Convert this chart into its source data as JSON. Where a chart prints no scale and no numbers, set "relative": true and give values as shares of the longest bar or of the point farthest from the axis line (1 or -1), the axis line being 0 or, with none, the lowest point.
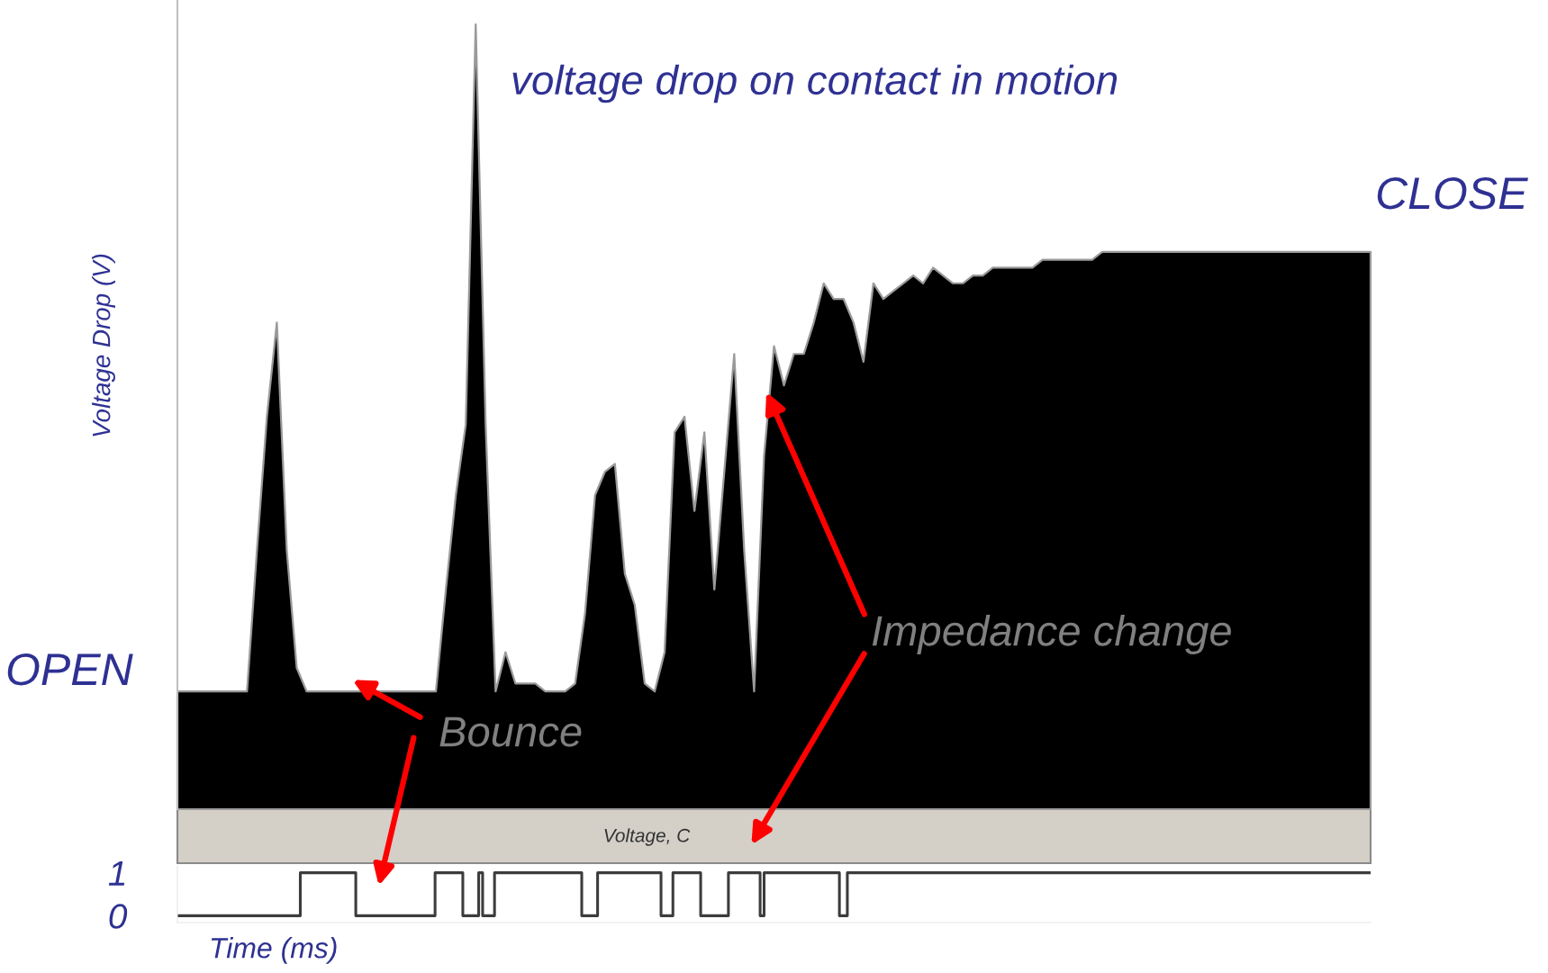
{
  "chart_data": [
    {
      "type": "area",
      "title": "voltage drop on contact in motion",
      "ylabel": "Voltage Drop (V)",
      "relative": true,
      "annotations": [
        "OPEN",
        "CLOSE",
        "Bounce",
        "Impedance change"
      ],
      "categories": [
        null,
        null,
        null,
        null,
        null,
        null,
        null,
        null,
        null,
        null,
        null,
        null,
        null,
        null,
        null,
        null,
        null,
        null,
        null,
        null,
        null,
        null,
        null,
        null,
        null,
        null,
        null,
        null,
        null,
        null,
        null,
        null,
        null,
        null,
        null,
        null,
        null,
        null,
        null,
        null,
        null,
        null,
        null,
        null,
        null,
        null,
        null,
        null,
        null,
        null,
        null,
        null,
        null,
        null,
        null,
        null,
        null,
        null,
        null,
        null,
        null,
        null,
        null,
        null,
        null,
        null,
        null,
        null,
        null,
        null,
        null,
        null,
        null,
        null,
        null,
        null,
        null,
        null,
        null,
        null,
        null,
        null,
        null,
        null,
        null,
        null,
        null,
        null,
        null,
        null,
        null,
        null,
        null,
        null,
        null,
        null,
        null,
        null,
        null,
        null,
        null,
        null,
        null,
        null,
        null,
        null,
        null,
        null,
        null,
        null,
        null,
        null,
        null,
        null,
        null,
        null,
        null,
        null,
        null,
        null,
        null
      ],
      "series": [
        {
          "color": "#000000",
          "values": [
            0.15,
            0.15,
            0.15,
            0.15,
            0.15,
            0.15,
            0.15,
            0.15,
            0.33,
            0.5,
            0.62,
            0.33,
            0.18,
            0.15,
            0.15,
            0.15,
            0.15,
            0.15,
            0.15,
            0.15,
            0.15,
            0.15,
            0.15,
            0.15,
            0.15,
            0.15,
            0.15,
            0.28,
            0.4,
            0.49,
            1.0,
            0.49,
            0.15,
            0.2,
            0.16,
            0.16,
            0.16,
            0.15,
            0.15,
            0.15,
            0.16,
            0.25,
            0.4,
            0.43,
            0.44,
            0.3,
            0.26,
            0.16,
            0.15,
            0.2,
            0.48,
            0.5,
            0.38,
            0.48,
            0.28,
            0.43,
            0.58,
            0.33,
            0.15,
            0.45,
            0.59,
            0.54,
            0.58,
            0.58,
            0.62,
            0.67,
            0.65,
            0.65,
            0.62,
            0.57,
            0.67,
            0.65,
            0.66,
            0.67,
            0.68,
            0.67,
            0.69,
            0.68,
            0.67,
            0.67,
            0.68,
            0.68,
            0.69,
            0.69,
            0.69,
            0.69,
            0.69,
            0.7,
            0.7,
            0.7,
            0.7,
            0.7,
            0.7,
            0.71,
            0.71,
            0.71,
            0.71,
            0.71,
            0.71,
            0.71,
            0.71,
            0.71,
            0.71,
            0.71,
            0.71,
            0.71,
            0.71,
            0.71,
            0.71,
            0.71,
            0.71,
            0.71,
            0.71,
            0.71,
            0.71,
            0.71,
            0.71,
            0.71,
            0.71,
            0.71,
            0.71
          ]
        }
      ]
    },
    {
      "type": "step",
      "xlabel": "Time (ms)",
      "annotations": [
        "Voltage, C"
      ],
      "ylim": [
        -0.16,
        1.16
      ],
      "yticks": [
        0,
        1
      ],
      "categories": [
        null,
        null,
        null,
        null,
        null,
        null,
        null,
        null,
        null,
        null,
        null,
        null,
        null,
        null,
        null,
        null,
        null,
        null,
        null,
        null,
        null,
        null,
        null,
        null,
        null,
        null,
        null,
        null,
        null,
        null,
        null,
        null,
        null,
        null,
        null,
        null,
        null,
        null,
        null,
        null,
        null,
        null,
        null,
        null,
        null,
        null,
        null,
        null,
        null,
        null,
        null,
        null,
        null,
        null,
        null,
        null,
        null,
        null,
        null,
        null,
        null,
        null,
        null,
        null,
        null,
        null,
        null,
        null,
        null,
        null,
        null,
        null,
        null,
        null,
        null,
        null,
        null,
        null,
        null,
        null,
        null,
        null,
        null,
        null,
        null,
        null,
        null,
        null,
        null,
        null,
        null,
        null,
        null,
        null,
        null,
        null,
        null,
        null,
        null,
        null,
        null,
        null,
        null,
        null,
        null,
        null,
        null,
        null,
        null,
        null,
        null,
        null,
        null,
        null,
        null,
        null,
        null,
        null,
        null,
        null,
        null,
        null,
        null,
        null,
        null,
        null,
        null,
        null,
        null,
        null,
        null,
        null,
        null,
        null,
        null,
        null,
        null,
        null,
        null,
        null,
        null,
        null,
        null,
        null,
        null,
        null,
        null,
        null,
        null,
        null,
        null,
        null,
        null,
        null,
        null,
        null,
        null,
        null,
        null,
        null,
        null,
        null,
        null,
        null,
        null,
        null,
        null,
        null,
        null,
        null,
        null,
        null,
        null,
        null,
        null,
        null,
        null,
        null,
        null,
        null,
        null,
        null,
        null,
        null,
        null,
        null,
        null,
        null,
        null,
        null,
        null,
        null,
        null,
        null,
        null,
        null,
        null,
        null,
        null,
        null,
        null,
        null,
        null,
        null,
        null,
        null,
        null,
        null,
        null,
        null,
        null,
        null,
        null,
        null,
        null,
        null,
        null,
        null,
        null,
        null,
        null,
        null,
        null,
        null,
        null,
        null,
        null,
        null,
        null,
        null,
        null,
        null,
        null,
        null,
        null,
        null,
        null,
        null,
        null,
        null,
        null,
        null,
        null,
        null,
        null,
        null,
        null,
        null,
        null,
        null,
        null,
        null,
        null,
        null,
        null,
        null,
        null,
        null,
        null,
        null,
        null,
        null,
        null,
        null,
        null,
        null,
        null,
        null,
        null,
        null,
        null,
        null,
        null,
        null,
        null,
        null,
        null,
        null,
        null,
        null,
        null,
        null,
        null,
        null,
        null,
        null,
        null,
        null,
        null,
        null,
        null,
        null,
        null,
        null,
        null,
        null,
        null,
        null,
        null,
        null,
        null,
        null
      ],
      "series": [
        {
          "color": "#3c3c3c",
          "values": [
            0,
            0,
            0,
            0,
            0,
            0,
            0,
            0,
            0,
            0,
            0,
            0,
            0,
            0,
            0,
            0,
            0,
            0,
            0,
            0,
            0,
            0,
            0,
            0,
            0,
            0,
            0,
            0,
            0,
            0,
            0,
            1,
            1,
            1,
            1,
            1,
            1,
            1,
            1,
            1,
            1,
            1,
            1,
            1,
            1,
            0,
            0,
            0,
            0,
            0,
            0,
            0,
            0,
            0,
            0,
            0,
            0,
            0,
            0,
            0,
            0,
            0,
            0,
            0,
            0,
            1,
            1,
            1,
            1,
            1,
            1,
            1,
            0,
            0,
            0,
            0,
            1,
            0,
            0,
            0,
            1,
            1,
            1,
            1,
            1,
            1,
            1,
            1,
            1,
            1,
            1,
            1,
            1,
            1,
            1,
            1,
            1,
            1,
            1,
            1,
            1,
            1,
            0,
            0,
            0,
            0,
            1,
            1,
            1,
            1,
            1,
            1,
            1,
            1,
            1,
            1,
            1,
            1,
            1,
            1,
            1,
            1,
            0,
            0,
            0,
            1,
            1,
            1,
            1,
            1,
            1,
            1,
            0,
            0,
            0,
            0,
            0,
            0,
            0,
            1,
            1,
            1,
            1,
            1,
            1,
            1,
            1,
            0,
            1,
            1,
            1,
            1,
            1,
            1,
            1,
            1,
            1,
            1,
            1,
            1,
            1,
            1,
            1,
            1,
            1,
            1,
            1,
            0,
            0,
            1,
            1,
            1,
            1,
            1,
            1,
            1,
            1,
            1,
            1,
            1,
            1,
            1,
            1,
            1,
            1,
            1,
            1,
            1,
            1,
            1,
            1,
            1,
            1,
            1,
            1,
            1,
            1,
            1,
            1,
            1,
            1,
            1,
            1,
            1,
            1,
            1,
            1,
            1,
            1,
            1,
            1,
            1,
            1,
            1,
            1,
            1,
            1,
            1,
            1,
            1,
            1,
            1,
            1,
            1,
            1,
            1,
            1,
            1,
            1,
            1,
            1,
            1,
            1,
            1,
            1,
            1,
            1,
            1,
            1,
            1,
            1,
            1,
            1,
            1,
            1,
            1,
            1,
            1,
            1,
            1,
            1,
            1,
            1,
            1,
            1,
            1,
            1,
            1,
            1,
            1,
            1,
            1,
            1,
            1,
            1,
            1,
            1,
            1,
            1,
            1,
            1,
            1,
            1,
            1,
            1,
            1,
            1,
            1,
            1,
            1,
            1,
            1,
            1,
            1,
            1,
            1,
            1,
            1,
            1,
            1,
            1,
            1,
            1,
            1,
            1,
            1,
            1,
            1,
            1,
            1,
            1,
            1
          ]
        }
      ]
    }
  ]
}
